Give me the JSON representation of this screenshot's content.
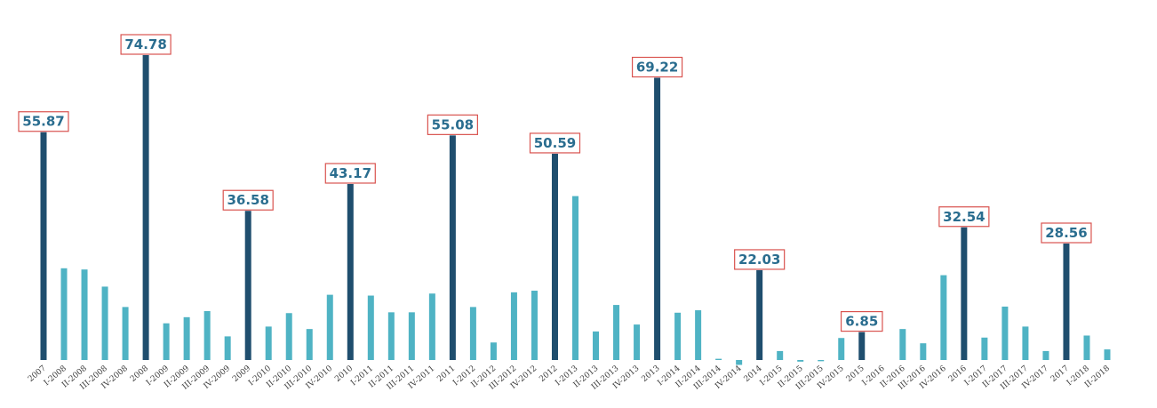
{
  "chart_data": {
    "type": "bar",
    "title": "",
    "xlabel": "",
    "ylabel": "",
    "ylim": [
      0,
      80
    ],
    "grid": false,
    "legend": "none",
    "colors": {
      "annual": "#1f4e6e",
      "quarterly": "#4fb3c4",
      "label_border": "#d9534f",
      "label_text": "#2a6d8f"
    },
    "categories": [
      "2007",
      "I-2008",
      "II-2008",
      "III-2008",
      "IV-2008",
      "2008",
      "I-2009",
      "II-2009",
      "III-2009",
      "IV-2009",
      "2009",
      "I-2010",
      "II-2010",
      "III-2010",
      "IV-2010",
      "2010",
      "I-2011",
      "II-2011",
      "III-2011",
      "IV-2011",
      "2011",
      "I-2012",
      "II-2012",
      "III-2012",
      "IV-2012",
      "2012",
      "I-2013",
      "II-2013",
      "III-2013",
      "IV-2013",
      "2013",
      "I-2014",
      "II-2014",
      "III-2014",
      "IV-2014",
      "2014",
      "I-2015",
      "II-2015",
      "III-2015",
      "IV-2015",
      "2015",
      "I-2016",
      "II-2016",
      "III-2016",
      "IV-2016",
      "2016",
      "I-2017",
      "II-2017",
      "III-2017",
      "IV-2017",
      "2017",
      "I-2018",
      "II-2018"
    ],
    "values": [
      55.87,
      22.5,
      22.2,
      18.0,
      13.0,
      74.78,
      9.0,
      10.5,
      12.0,
      5.8,
      36.58,
      8.2,
      11.5,
      7.6,
      16.0,
      43.17,
      15.8,
      11.7,
      11.7,
      16.3,
      55.08,
      13.0,
      4.3,
      16.6,
      17.0,
      50.59,
      40.2,
      7.0,
      13.5,
      8.7,
      69.22,
      11.6,
      12.2,
      0.3,
      -1.2,
      22.03,
      2.2,
      -0.4,
      -0.3,
      5.4,
      6.85,
      0,
      7.6,
      4.1,
      20.8,
      32.54,
      5.5,
      13.1,
      8.2,
      2.2,
      28.56,
      6.0,
      2.6
    ],
    "bar_kind": [
      "annual",
      "quarterly",
      "quarterly",
      "quarterly",
      "quarterly",
      "annual",
      "quarterly",
      "quarterly",
      "quarterly",
      "quarterly",
      "annual",
      "quarterly",
      "quarterly",
      "quarterly",
      "quarterly",
      "annual",
      "quarterly",
      "quarterly",
      "quarterly",
      "quarterly",
      "annual",
      "quarterly",
      "quarterly",
      "quarterly",
      "quarterly",
      "annual",
      "quarterly",
      "quarterly",
      "quarterly",
      "quarterly",
      "annual",
      "quarterly",
      "quarterly",
      "quarterly",
      "quarterly",
      "annual",
      "quarterly",
      "quarterly",
      "quarterly",
      "quarterly",
      "annual",
      "quarterly",
      "quarterly",
      "quarterly",
      "quarterly",
      "annual",
      "quarterly",
      "quarterly",
      "quarterly",
      "quarterly",
      "annual",
      "quarterly",
      "quarterly"
    ],
    "data_labels": [
      {
        "category": "2007",
        "text": "55.87"
      },
      {
        "category": "2008",
        "text": "74.78"
      },
      {
        "category": "2009",
        "text": "36.58"
      },
      {
        "category": "2010",
        "text": "43.17"
      },
      {
        "category": "2011",
        "text": "55.08"
      },
      {
        "category": "2012",
        "text": "50.59"
      },
      {
        "category": "2013",
        "text": "69.22"
      },
      {
        "category": "2014",
        "text": "22.03"
      },
      {
        "category": "2015",
        "text": "6.85"
      },
      {
        "category": "2016",
        "text": "32.54"
      },
      {
        "category": "2017",
        "text": "28.56"
      }
    ]
  }
}
